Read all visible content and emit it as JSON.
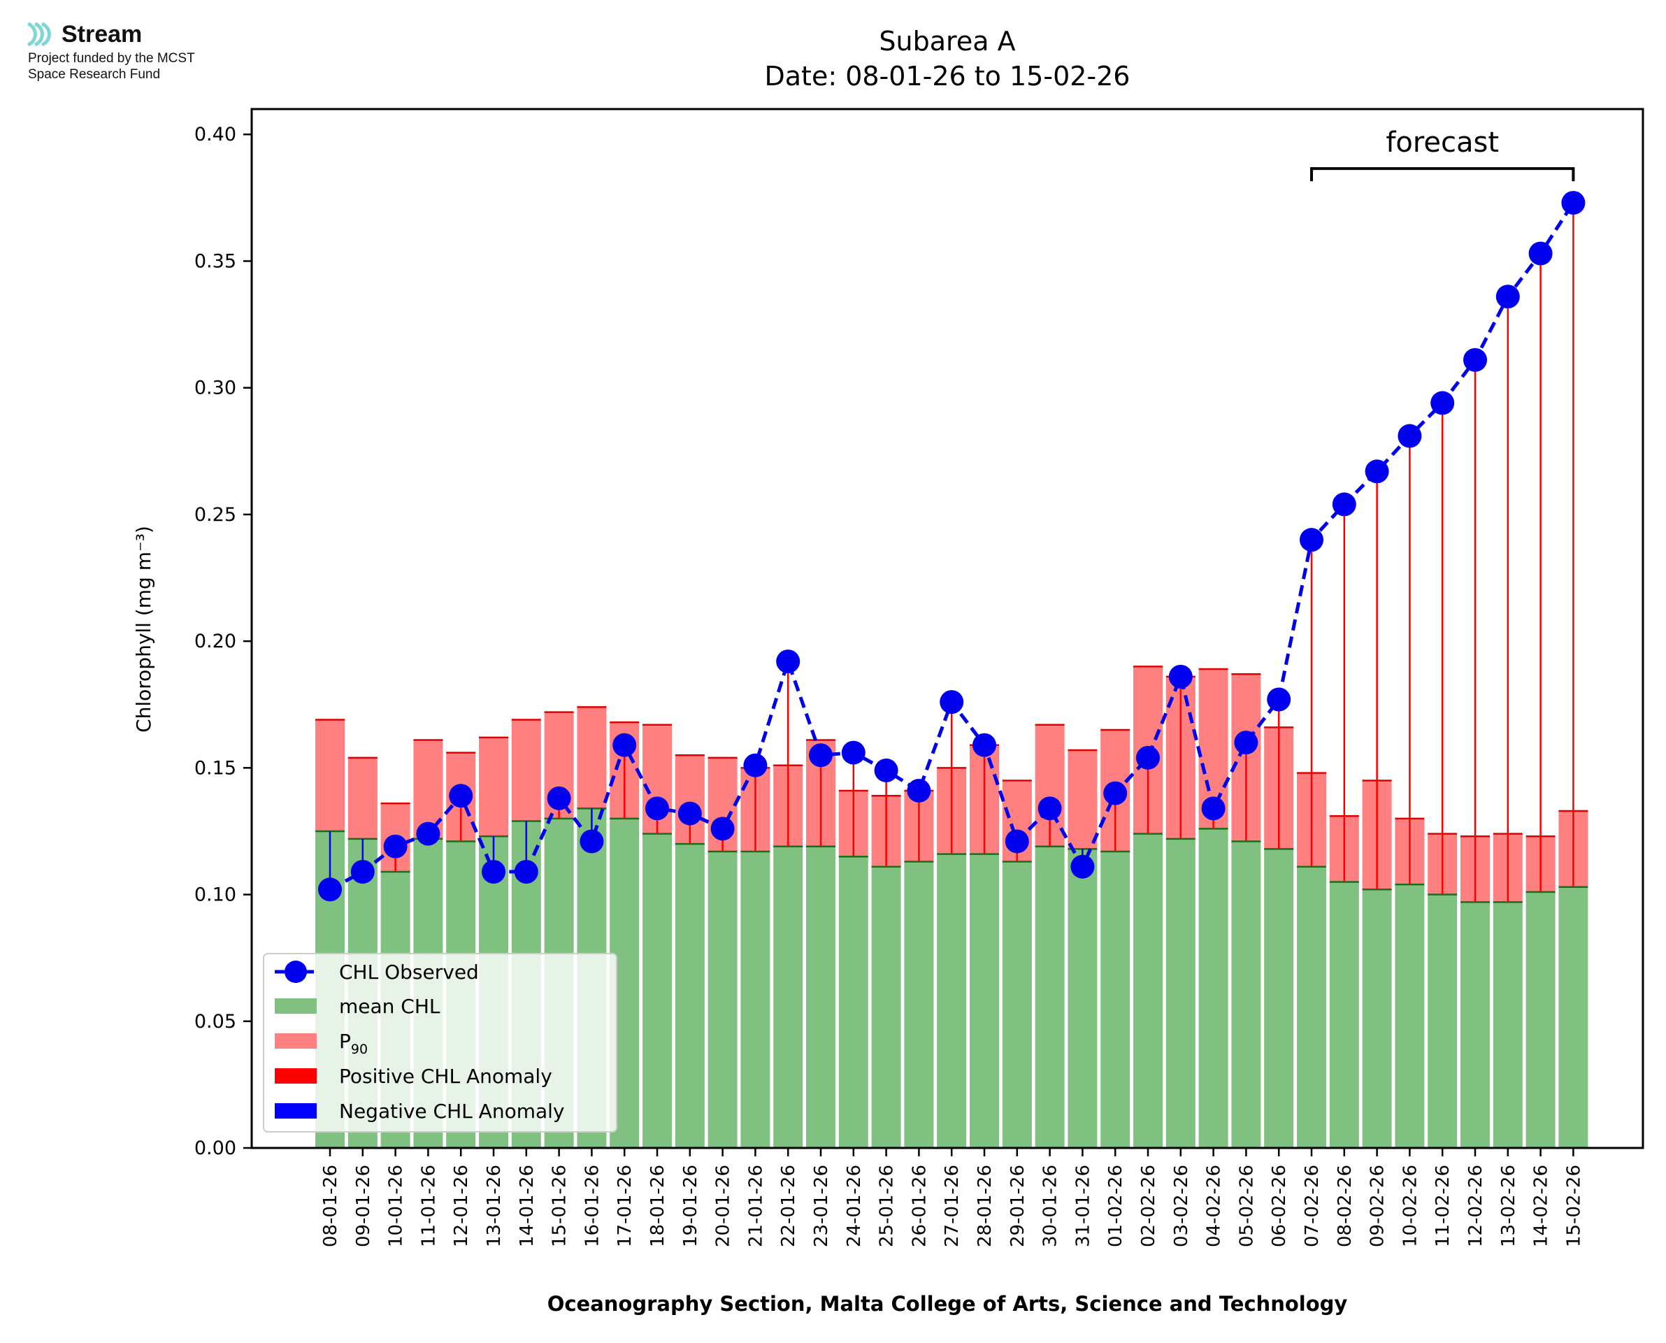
{
  "logo": {
    "name": "Stream",
    "line1": "Project funded by the MCST",
    "line2": "Space Research Fund"
  },
  "colors": {
    "mean": "#80c080",
    "p90": "#ff8080",
    "positive": "#ff0000",
    "negative": "#0000ff",
    "observed": "#0000ee",
    "logo": "#7fd6d6"
  },
  "chart_data": {
    "type": "bar",
    "title": "Subarea A",
    "subtitle": "Date: 08-01-26 to 15-02-26",
    "ylabel": "Chlorophyll (mg m⁻³)",
    "xlabel": "Oceanography Section, Malta College of Arts, Science and Technology",
    "ylim": [
      0,
      0.41
    ],
    "yticks": [
      "0.00",
      "0.05",
      "0.10",
      "0.15",
      "0.20",
      "0.25",
      "0.30",
      "0.35",
      "0.40"
    ],
    "categories": [
      "08-01-26",
      "09-01-26",
      "10-01-26",
      "11-01-26",
      "12-01-26",
      "13-01-26",
      "14-01-26",
      "15-01-26",
      "16-01-26",
      "17-01-26",
      "18-01-26",
      "19-01-26",
      "20-01-26",
      "21-01-26",
      "22-01-26",
      "23-01-26",
      "24-01-26",
      "25-01-26",
      "26-01-26",
      "27-01-26",
      "28-01-26",
      "29-01-26",
      "30-01-26",
      "31-01-26",
      "01-02-26",
      "02-02-26",
      "03-02-26",
      "04-02-26",
      "05-02-26",
      "06-02-26",
      "07-02-26",
      "08-02-26",
      "09-02-26",
      "10-02-26",
      "11-02-26",
      "12-02-26",
      "13-02-26",
      "14-02-26",
      "15-02-26"
    ],
    "series": [
      {
        "name": "mean CHL",
        "values": [
          0.125,
          0.122,
          0.109,
          0.122,
          0.121,
          0.123,
          0.129,
          0.13,
          0.134,
          0.13,
          0.124,
          0.12,
          0.117,
          0.117,
          0.119,
          0.119,
          0.115,
          0.111,
          0.113,
          0.116,
          0.116,
          0.113,
          0.119,
          0.118,
          0.117,
          0.124,
          0.122,
          0.126,
          0.121,
          0.118,
          0.111,
          0.105,
          0.102,
          0.104,
          0.1,
          0.097,
          0.097,
          0.101,
          0.103
        ]
      },
      {
        "name": "P90",
        "values": [
          0.169,
          0.154,
          0.136,
          0.161,
          0.156,
          0.162,
          0.169,
          0.172,
          0.174,
          0.168,
          0.167,
          0.155,
          0.154,
          0.15,
          0.151,
          0.161,
          0.141,
          0.139,
          0.141,
          0.15,
          0.159,
          0.145,
          0.167,
          0.157,
          0.165,
          0.19,
          0.186,
          0.189,
          0.187,
          0.166,
          0.148,
          0.131,
          0.145,
          0.13,
          0.124,
          0.123,
          0.124,
          0.123,
          0.133
        ]
      },
      {
        "name": "CHL Observed",
        "values": [
          0.102,
          0.109,
          0.119,
          0.124,
          0.139,
          0.109,
          0.109,
          0.138,
          0.121,
          0.159,
          0.134,
          0.132,
          0.126,
          0.151,
          0.192,
          0.155,
          0.156,
          0.149,
          0.141,
          0.176,
          0.159,
          0.121,
          0.134,
          0.111,
          0.14,
          0.154,
          0.186,
          0.134,
          0.16,
          0.177,
          0.24,
          0.254,
          0.267,
          0.281,
          0.294,
          0.311,
          0.336,
          0.353,
          0.373
        ]
      }
    ],
    "legend": {
      "position": "lower-left",
      "entries": [
        "CHL Observed",
        "mean CHL",
        "P",
        "Positive CHL Anomaly",
        "Negative CHL Anomaly"
      ],
      "p90_subscript": "90"
    },
    "annotation": {
      "text": "forecast",
      "from": "07-02-26",
      "to": "15-02-26"
    }
  }
}
